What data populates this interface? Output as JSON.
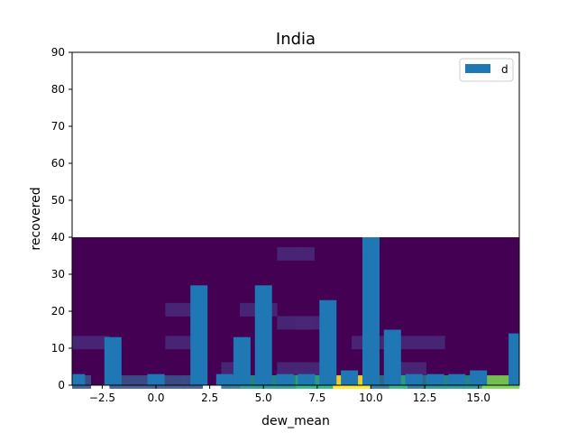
{
  "chart_data": {
    "type": "bar",
    "title": "India",
    "xlabel": "dew_mean",
    "ylabel": "recovered",
    "xlim": [
      -3.9,
      16.9
    ],
    "ylim": [
      0,
      90
    ],
    "x_ticks": [
      -2.5,
      0.0,
      2.5,
      5.0,
      7.5,
      10.0,
      12.5,
      15.0
    ],
    "x_tick_labels": [
      "−2.5",
      "0.0",
      "2.5",
      "5.0",
      "7.5",
      "10.0",
      "12.5",
      "15.0"
    ],
    "y_ticks": [
      0,
      10,
      20,
      30,
      40,
      50,
      60,
      70,
      80,
      90
    ],
    "y_tick_labels": [
      "0",
      "10",
      "20",
      "30",
      "40",
      "50",
      "60",
      "70",
      "80",
      "90"
    ],
    "legend": {
      "position": "upper right",
      "entries": [
        "d"
      ]
    },
    "series": [
      {
        "name": "d",
        "color": "#1f77b4",
        "points": [
          {
            "x": -3.7,
            "y": 3
          },
          {
            "x": -2.0,
            "y": 13
          },
          {
            "x": 0.0,
            "y": 3
          },
          {
            "x": 2.0,
            "y": 27
          },
          {
            "x": 3.2,
            "y": 3
          },
          {
            "x": 4.0,
            "y": 13
          },
          {
            "x": 5.0,
            "y": 27
          },
          {
            "x": 6.0,
            "y": 3
          },
          {
            "x": 7.0,
            "y": 3
          },
          {
            "x": 8.0,
            "y": 23
          },
          {
            "x": 9.0,
            "y": 4
          },
          {
            "x": 10.0,
            "y": 40
          },
          {
            "x": 11.0,
            "y": 15
          },
          {
            "x": 12.0,
            "y": 3
          },
          {
            "x": 13.0,
            "y": 3
          },
          {
            "x": 14.0,
            "y": 3
          },
          {
            "x": 15.0,
            "y": 4
          },
          {
            "x": 16.8,
            "y": 14
          }
        ]
      }
    ],
    "heatmap": {
      "colormap": "viridis",
      "x_range": [
        -3.9,
        16.9
      ],
      "y_range": [
        0,
        40
      ],
      "x_bins": 20,
      "y_bins": 40,
      "background_color": "#440154",
      "cells": [
        {
          "col": 0,
          "row": 14,
          "color": "#482878"
        },
        {
          "col": 1,
          "row": 14,
          "color": "#482878"
        },
        {
          "col": 5,
          "row": 14,
          "color": "#482878"
        },
        {
          "col": 6,
          "row": 14,
          "color": "#482878"
        },
        {
          "col": 15,
          "row": 14,
          "color": "#482878"
        },
        {
          "col": 16,
          "row": 14,
          "color": "#482878"
        },
        {
          "col": 19,
          "row": 14,
          "color": "#482878"
        },
        {
          "col": 11,
          "row": 41,
          "color": "#482878"
        },
        {
          "col": 12,
          "row": 41,
          "color": "#482878"
        },
        {
          "col": 5,
          "row": 24,
          "color": "#482878"
        },
        {
          "col": 6,
          "row": 24,
          "color": "#482878"
        },
        {
          "col": 9,
          "row": 24,
          "color": "#482878"
        },
        {
          "col": 10,
          "row": 24,
          "color": "#482878"
        },
        {
          "col": 12,
          "row": 20,
          "color": "#482878"
        },
        {
          "col": 13,
          "row": 20,
          "color": "#482878"
        },
        {
          "col": 11,
          "row": 20,
          "color": "#482878"
        },
        {
          "col": 12,
          "row": 20,
          "color": "#482878"
        },
        {
          "col": 17,
          "row": 14,
          "color": "#482878"
        },
        {
          "col": 18,
          "row": 14,
          "color": "#482878"
        },
        {
          "col": 8,
          "row": 6,
          "color": "#482878"
        },
        {
          "col": 11,
          "row": 6,
          "color": "#482878"
        },
        {
          "col": 12,
          "row": 6,
          "color": "#482878"
        },
        {
          "col": 13,
          "row": 6,
          "color": "#482878"
        },
        {
          "col": 17,
          "row": 6,
          "color": "#482878"
        },
        {
          "col": 18,
          "row": 6,
          "color": "#482878"
        },
        {
          "col": 2,
          "row": 2,
          "color": "#3b528b"
        },
        {
          "col": 3,
          "row": 2,
          "color": "#3b528b"
        },
        {
          "col": 4,
          "row": 2,
          "color": "#3b528b"
        },
        {
          "col": 5,
          "row": 2,
          "color": "#3b528b"
        },
        {
          "col": 6,
          "row": 2,
          "color": "#3b528b"
        },
        {
          "col": 0,
          "row": 2,
          "color": "#3b528b"
        },
        {
          "col": 8,
          "row": 2,
          "color": "#2c728e"
        },
        {
          "col": 9,
          "row": 2,
          "color": "#21918c"
        },
        {
          "col": 10,
          "row": 2,
          "color": "#21918c"
        },
        {
          "col": 11,
          "row": 2,
          "color": "#21918c"
        },
        {
          "col": 12,
          "row": 2,
          "color": "#28ae80"
        },
        {
          "col": 13,
          "row": 2,
          "color": "#28ae80"
        },
        {
          "col": 14,
          "row": 2,
          "color": "#fde725"
        },
        {
          "col": 15,
          "row": 2,
          "color": "#fde725"
        },
        {
          "col": 16,
          "row": 2,
          "color": "#2c728e"
        },
        {
          "col": 17,
          "row": 2,
          "color": "#28ae80"
        },
        {
          "col": 18,
          "row": 2,
          "color": "#2c728e"
        },
        {
          "col": 19,
          "row": 2,
          "color": "#21918c"
        },
        {
          "col": 20,
          "row": 2,
          "color": "#21918c"
        },
        {
          "col": 21,
          "row": 2,
          "color": "#21918c"
        },
        {
          "col": 22,
          "row": 2,
          "color": "#7ad151"
        },
        {
          "col": 23,
          "row": 2,
          "color": "#7ad151"
        }
      ]
    }
  }
}
